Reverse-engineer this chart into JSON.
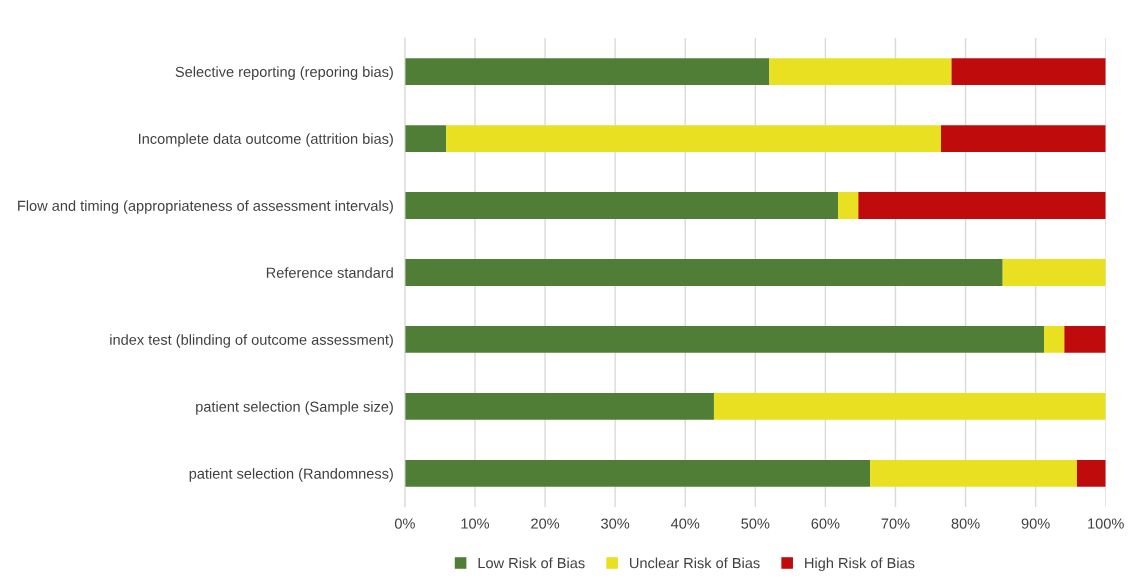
{
  "chart_data": {
    "type": "bar",
    "orientation": "horizontal",
    "stacked": true,
    "categories": [
      "Selective reporting (reporing bias)",
      "Incomplete data outcome (attrition bias)",
      "Flow and timing (appropriateness of assessment intervals)",
      "Reference standard",
      "index test (blinding of outcome assessment)",
      "patient selection (Sample size)",
      "patient selection (Randomness)"
    ],
    "series": [
      {
        "name": "Low Risk of Bias",
        "color": "#507e36",
        "values": [
          52,
          5.9,
          61.8,
          85.3,
          91.2,
          44.1,
          66.4
        ]
      },
      {
        "name": "Unclear Risk of Bias",
        "color": "#e9e021",
        "values": [
          26,
          70.6,
          2.9,
          14.7,
          2.9,
          55.9,
          29.5
        ]
      },
      {
        "name": "High Risk of Bias",
        "color": "#bf0b0c",
        "values": [
          22,
          23.5,
          35.3,
          0,
          5.9,
          0,
          4.1
        ]
      }
    ],
    "xlim": [
      0,
      100
    ],
    "xticks": [
      {
        "value": 0,
        "label": "0%"
      },
      {
        "value": 10,
        "label": "10%"
      },
      {
        "value": 20,
        "label": "20%"
      },
      {
        "value": 30,
        "label": "30%"
      },
      {
        "value": 40,
        "label": "40%"
      },
      {
        "value": 50,
        "label": "50%"
      },
      {
        "value": 60,
        "label": "60%"
      },
      {
        "value": 70,
        "label": "70%"
      },
      {
        "value": 80,
        "label": "80%"
      },
      {
        "value": 90,
        "label": "90%"
      },
      {
        "value": 100,
        "label": "100%"
      }
    ],
    "grid": "x",
    "legend": "bottom"
  }
}
